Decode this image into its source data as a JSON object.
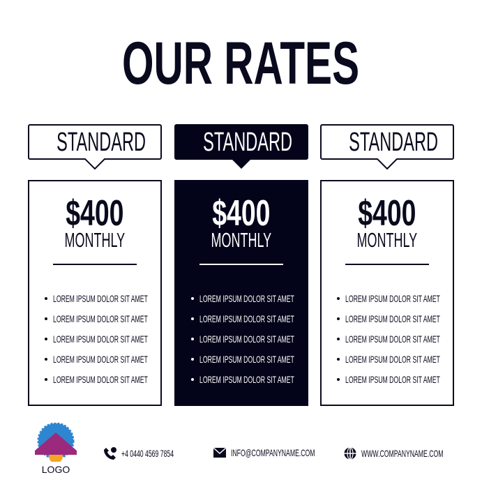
{
  "title": "OUR RATES",
  "plans": [
    {
      "name": "STANDARD",
      "price": "$400",
      "period": "MONTHLY",
      "features": [
        "LOREM IPSUM DOLOR SIT AMET",
        "LOREM IPSUM DOLOR SIT AMET",
        "LOREM IPSUM DOLOR SIT AMET",
        "LOREM IPSUM DOLOR SIT AMET",
        "LOREM IPSUM DOLOR SIT AMET"
      ],
      "highlighted": false
    },
    {
      "name": "STANDARD",
      "price": "$400",
      "period": "MONTHLY",
      "features": [
        "LOREM IPSUM DOLOR SIT AMET",
        "LOREM IPSUM DOLOR SIT AMET",
        "LOREM IPSUM DOLOR SIT AMET",
        "LOREM IPSUM DOLOR SIT AMET",
        "LOREM IPSUM DOLOR SIT AMET"
      ],
      "highlighted": true
    },
    {
      "name": "STANDARD",
      "price": "$400",
      "period": "MONTHLY",
      "features": [
        "LOREM IPSUM DOLOR SIT AMET",
        "LOREM IPSUM DOLOR SIT AMET",
        "LOREM IPSUM DOLOR SIT AMET",
        "LOREM IPSUM DOLOR SIT AMET",
        "LOREM IPSUM DOLOR SIT AMET"
      ],
      "highlighted": false
    }
  ],
  "footer": {
    "logo": "LOGO",
    "phone": "+4 0440 4569 7854",
    "email": "INFO@COMPANYNAME.COM",
    "website": "WWW.COMPANYNAME.COM"
  },
  "colors": {
    "dark": "#03031a",
    "text": "#0a0a1e",
    "logo_blue": "#2f86d0",
    "logo_purple": "#9b2a7e",
    "logo_orange": "#f5a623"
  }
}
